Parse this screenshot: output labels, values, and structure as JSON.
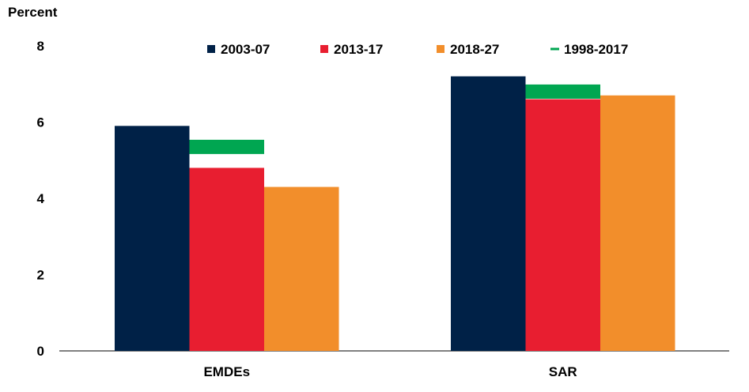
{
  "chart_data": {
    "type": "bar",
    "ylabel": "Percent",
    "ylim": [
      0,
      8
    ],
    "yticks": [
      0,
      2,
      4,
      6,
      8
    ],
    "categories": [
      "EMDEs",
      "SAR"
    ],
    "series": [
      {
        "name": "2003-07",
        "color": "#002147",
        "values": [
          5.9,
          7.2
        ]
      },
      {
        "name": "2013-17",
        "color": "#E81E30",
        "values": [
          4.8,
          6.6
        ]
      },
      {
        "name": "2018-27",
        "color": "#F28E2B",
        "values": [
          4.3,
          6.7
        ]
      }
    ],
    "markers": {
      "name": "1998-2017",
      "color": "#00A651",
      "values": [
        5.35,
        6.8
      ]
    },
    "legend_position": "top",
    "grid": false
  }
}
